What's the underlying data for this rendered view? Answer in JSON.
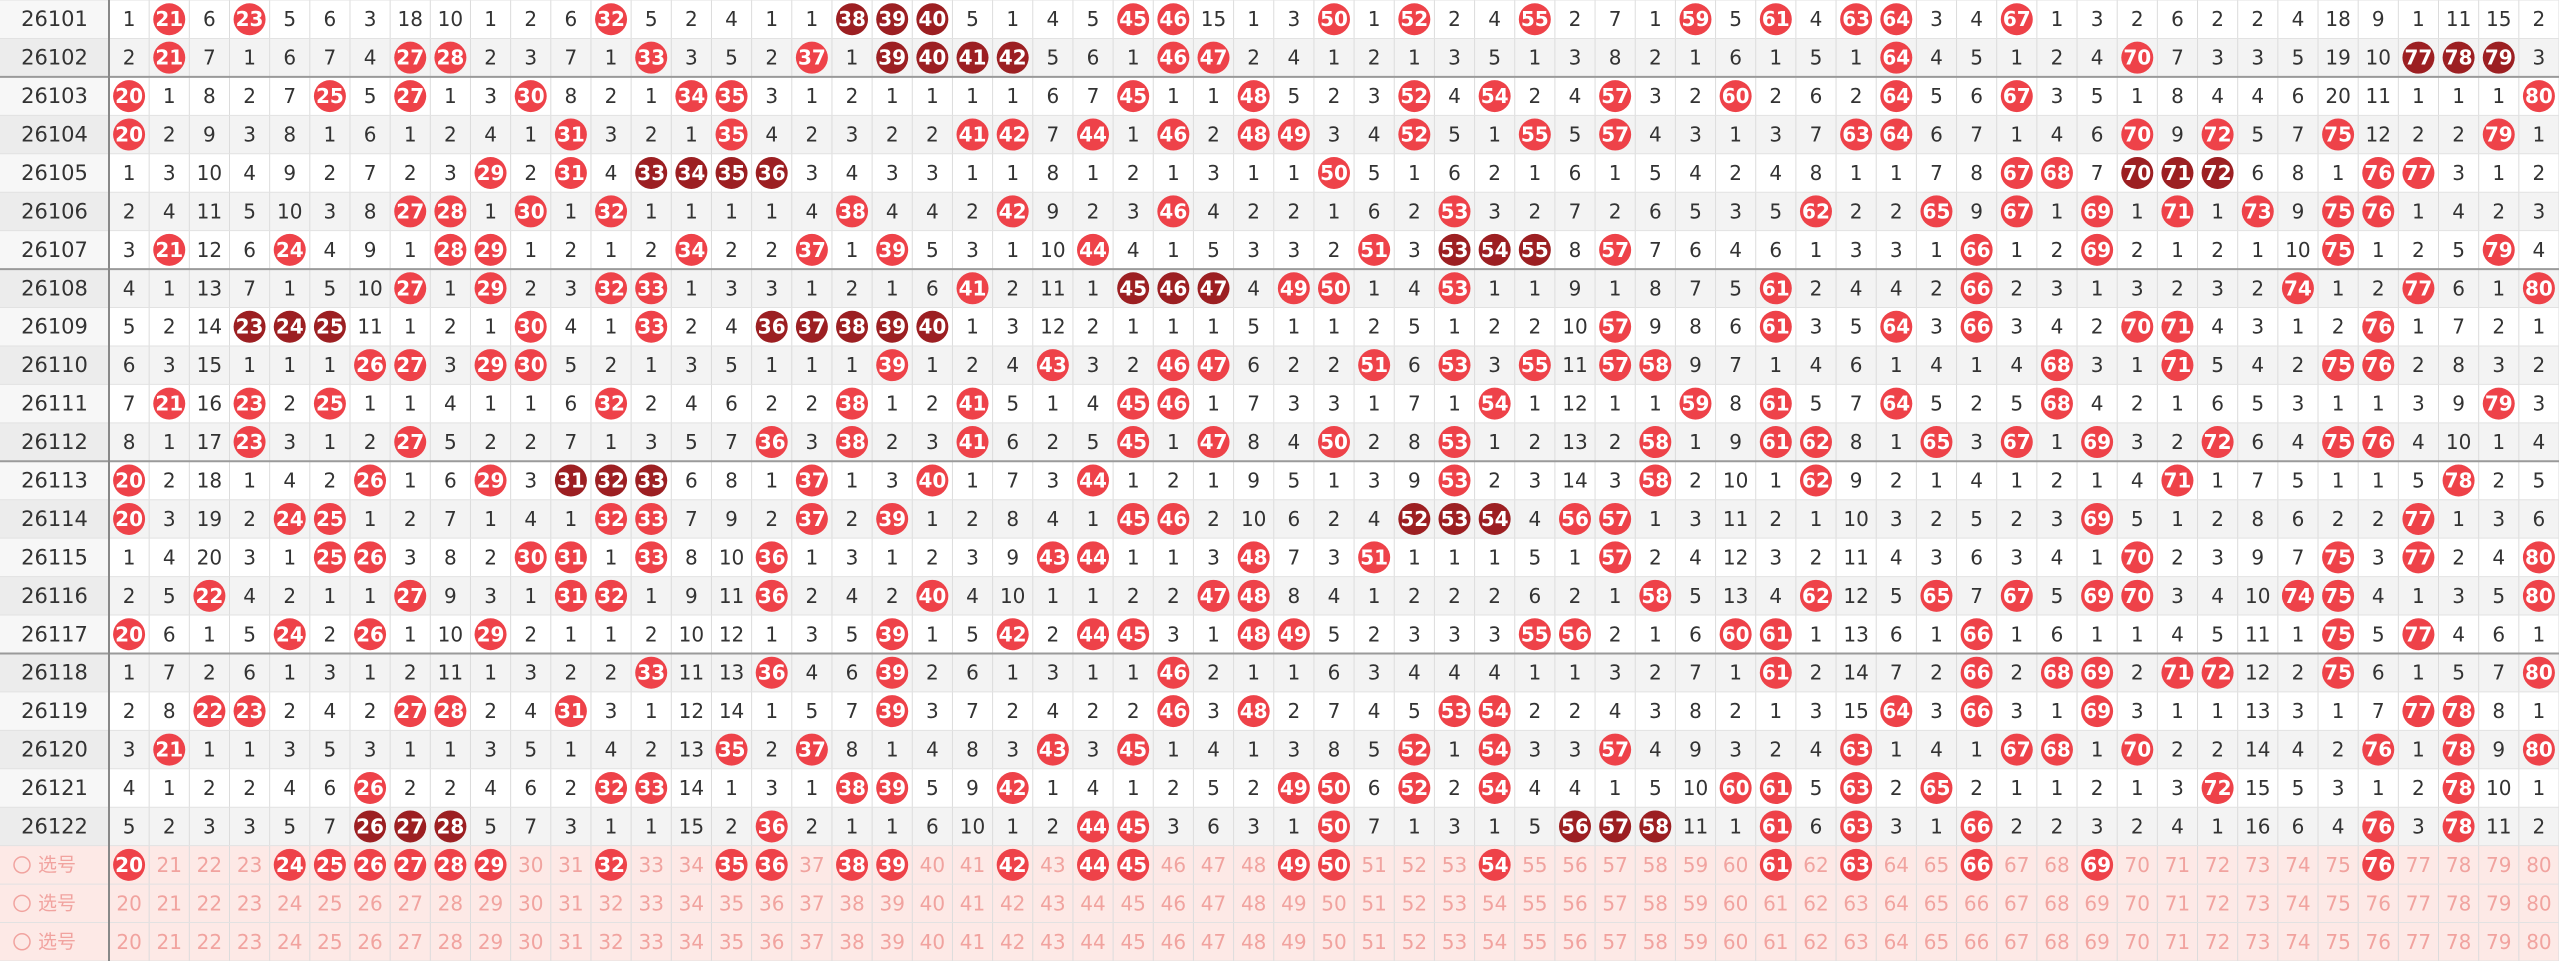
{
  "periods": [
    26101,
    26102,
    26103,
    26104,
    26105,
    26106,
    26107,
    26108,
    26109,
    26110,
    26111,
    26112,
    26113,
    26114,
    26115,
    26116,
    26117,
    26118,
    26119,
    26120,
    26121,
    26122
  ],
  "columns": [
    {
      "number": 20,
      "cells": [
        1,
        2,
        20,
        20,
        1,
        2,
        3,
        4,
        5,
        6,
        7,
        8,
        20,
        20,
        1,
        2,
        20,
        1,
        2,
        3,
        4,
        5
      ]
    },
    {
      "number": 21,
      "cells": [
        21,
        21,
        1,
        2,
        3,
        4,
        21,
        1,
        2,
        3,
        21,
        1,
        2,
        3,
        4,
        5,
        6,
        7,
        8,
        21,
        1,
        2
      ]
    },
    {
      "number": 22,
      "cells": [
        6,
        7,
        8,
        9,
        10,
        11,
        12,
        13,
        14,
        15,
        16,
        17,
        18,
        19,
        20,
        22,
        1,
        2,
        22,
        1,
        2,
        3
      ]
    },
    {
      "number": 23,
      "cells": [
        23,
        1,
        2,
        3,
        4,
        5,
        6,
        7,
        23,
        1,
        23,
        23,
        1,
        2,
        3,
        4,
        5,
        6,
        23,
        1,
        2,
        3
      ]
    },
    {
      "number": 24,
      "cells": [
        5,
        6,
        7,
        8,
        9,
        10,
        24,
        1,
        24,
        1,
        2,
        3,
        4,
        24,
        1,
        2,
        24,
        1,
        2,
        3,
        4,
        5
      ]
    },
    {
      "number": 25,
      "cells": [
        6,
        7,
        25,
        1,
        2,
        3,
        4,
        5,
        25,
        1,
        25,
        1,
        2,
        25,
        25,
        1,
        2,
        3,
        4,
        5,
        6,
        7
      ]
    },
    {
      "number": 26,
      "cells": [
        3,
        4,
        5,
        6,
        7,
        8,
        9,
        10,
        11,
        26,
        1,
        2,
        26,
        1,
        26,
        1,
        26,
        1,
        2,
        3,
        26,
        26
      ]
    },
    {
      "number": 27,
      "cells": [
        18,
        27,
        27,
        1,
        2,
        27,
        1,
        27,
        1,
        27,
        1,
        27,
        1,
        2,
        3,
        27,
        1,
        2,
        27,
        1,
        2,
        27
      ]
    },
    {
      "number": 28,
      "cells": [
        10,
        28,
        1,
        2,
        3,
        28,
        28,
        1,
        2,
        3,
        4,
        5,
        6,
        7,
        8,
        9,
        10,
        11,
        28,
        1,
        2,
        28
      ]
    },
    {
      "number": 29,
      "cells": [
        1,
        2,
        3,
        4,
        29,
        1,
        29,
        29,
        1,
        29,
        1,
        2,
        29,
        1,
        2,
        3,
        29,
        1,
        2,
        3,
        4,
        5
      ]
    },
    {
      "number": 30,
      "cells": [
        2,
        3,
        30,
        1,
        2,
        30,
        1,
        2,
        30,
        30,
        1,
        2,
        3,
        4,
        30,
        1,
        2,
        3,
        4,
        5,
        6,
        7
      ]
    },
    {
      "number": 31,
      "cells": [
        6,
        7,
        8,
        31,
        31,
        1,
        2,
        3,
        4,
        5,
        6,
        7,
        31,
        1,
        31,
        31,
        1,
        2,
        31,
        1,
        2,
        3
      ]
    },
    {
      "number": 32,
      "cells": [
        32,
        1,
        2,
        3,
        4,
        32,
        1,
        32,
        1,
        2,
        32,
        1,
        32,
        32,
        1,
        32,
        1,
        2,
        3,
        4,
        32,
        1
      ]
    },
    {
      "number": 33,
      "cells": [
        5,
        33,
        1,
        2,
        33,
        1,
        2,
        33,
        33,
        1,
        2,
        3,
        33,
        33,
        33,
        1,
        2,
        33,
        1,
        2,
        33,
        1
      ]
    },
    {
      "number": 34,
      "cells": [
        2,
        3,
        34,
        1,
        34,
        1,
        34,
        1,
        2,
        3,
        4,
        5,
        6,
        7,
        8,
        9,
        10,
        11,
        12,
        13,
        14,
        15
      ]
    },
    {
      "number": 35,
      "cells": [
        4,
        5,
        35,
        35,
        35,
        1,
        2,
        3,
        4,
        5,
        6,
        7,
        8,
        9,
        10,
        11,
        12,
        13,
        14,
        35,
        1,
        2
      ]
    },
    {
      "number": 36,
      "cells": [
        1,
        2,
        3,
        4,
        36,
        1,
        2,
        3,
        36,
        1,
        2,
        36,
        1,
        2,
        36,
        36,
        1,
        36,
        1,
        2,
        3,
        36
      ]
    },
    {
      "number": 37,
      "cells": [
        1,
        37,
        1,
        2,
        3,
        4,
        37,
        1,
        37,
        1,
        2,
        3,
        37,
        37,
        1,
        2,
        3,
        4,
        5,
        37,
        1,
        2
      ]
    },
    {
      "number": 38,
      "cells": [
        38,
        1,
        2,
        3,
        4,
        38,
        1,
        2,
        38,
        1,
        38,
        38,
        1,
        2,
        3,
        4,
        5,
        6,
        7,
        8,
        38,
        1
      ]
    },
    {
      "number": 39,
      "cells": [
        39,
        39,
        1,
        2,
        3,
        4,
        39,
        1,
        39,
        39,
        1,
        2,
        3,
        39,
        1,
        2,
        39,
        39,
        39,
        1,
        39,
        1
      ]
    },
    {
      "number": 40,
      "cells": [
        40,
        40,
        1,
        2,
        3,
        4,
        5,
        6,
        40,
        1,
        2,
        3,
        40,
        1,
        2,
        40,
        1,
        2,
        3,
        4,
        5,
        6
      ]
    },
    {
      "number": 41,
      "cells": [
        5,
        41,
        1,
        41,
        1,
        2,
        3,
        41,
        1,
        2,
        41,
        41,
        1,
        2,
        3,
        4,
        5,
        6,
        7,
        8,
        9,
        10
      ]
    },
    {
      "number": 42,
      "cells": [
        1,
        42,
        1,
        42,
        1,
        42,
        1,
        2,
        3,
        4,
        5,
        6,
        7,
        8,
        9,
        10,
        42,
        1,
        2,
        3,
        42,
        1
      ]
    },
    {
      "number": 43,
      "cells": [
        4,
        5,
        6,
        7,
        8,
        9,
        10,
        11,
        12,
        43,
        1,
        2,
        3,
        4,
        43,
        1,
        2,
        3,
        4,
        43,
        1,
        2
      ]
    },
    {
      "number": 44,
      "cells": [
        5,
        6,
        7,
        44,
        1,
        2,
        44,
        1,
        2,
        3,
        4,
        5,
        44,
        1,
        44,
        1,
        44,
        1,
        2,
        3,
        4,
        44
      ]
    },
    {
      "number": 45,
      "cells": [
        45,
        1,
        45,
        1,
        2,
        3,
        4,
        45,
        1,
        2,
        45,
        45,
        1,
        45,
        1,
        2,
        45,
        1,
        2,
        45,
        1,
        45
      ]
    },
    {
      "number": 46,
      "cells": [
        46,
        46,
        1,
        46,
        1,
        46,
        1,
        46,
        1,
        46,
        46,
        1,
        2,
        46,
        1,
        2,
        3,
        46,
        46,
        1,
        2,
        3
      ]
    },
    {
      "number": 47,
      "cells": [
        15,
        47,
        1,
        2,
        3,
        4,
        5,
        47,
        1,
        47,
        1,
        47,
        1,
        2,
        3,
        47,
        1,
        2,
        3,
        4,
        5,
        6
      ]
    },
    {
      "number": 48,
      "cells": [
        1,
        2,
        48,
        48,
        1,
        2,
        3,
        4,
        5,
        6,
        7,
        8,
        9,
        10,
        48,
        48,
        48,
        1,
        48,
        1,
        2,
        3
      ]
    },
    {
      "number": 49,
      "cells": [
        3,
        4,
        5,
        49,
        1,
        2,
        3,
        49,
        1,
        2,
        3,
        4,
        5,
        6,
        7,
        8,
        49,
        1,
        2,
        3,
        49,
        1
      ]
    },
    {
      "number": 50,
      "cells": [
        50,
        1,
        2,
        3,
        50,
        1,
        2,
        50,
        1,
        2,
        3,
        50,
        1,
        2,
        3,
        4,
        5,
        6,
        7,
        8,
        50,
        50
      ]
    },
    {
      "number": 51,
      "cells": [
        1,
        2,
        3,
        4,
        5,
        6,
        51,
        1,
        2,
        51,
        1,
        2,
        3,
        4,
        51,
        1,
        2,
        3,
        4,
        5,
        6,
        7
      ]
    },
    {
      "number": 52,
      "cells": [
        52,
        1,
        52,
        52,
        1,
        2,
        3,
        4,
        5,
        6,
        7,
        8,
        9,
        52,
        1,
        2,
        3,
        4,
        5,
        52,
        52,
        1
      ]
    },
    {
      "number": 53,
      "cells": [
        2,
        3,
        4,
        5,
        6,
        53,
        53,
        53,
        1,
        53,
        1,
        53,
        53,
        53,
        1,
        2,
        3,
        4,
        53,
        1,
        2,
        3
      ]
    },
    {
      "number": 54,
      "cells": [
        4,
        5,
        54,
        1,
        2,
        3,
        54,
        1,
        2,
        3,
        54,
        1,
        2,
        54,
        1,
        2,
        3,
        4,
        54,
        54,
        54,
        1
      ]
    },
    {
      "number": 55,
      "cells": [
        55,
        1,
        2,
        55,
        1,
        2,
        55,
        1,
        2,
        55,
        1,
        2,
        3,
        4,
        5,
        6,
        55,
        1,
        2,
        3,
        4,
        5
      ]
    },
    {
      "number": 56,
      "cells": [
        2,
        3,
        4,
        5,
        6,
        7,
        8,
        9,
        10,
        11,
        12,
        13,
        14,
        56,
        1,
        2,
        56,
        1,
        2,
        3,
        4,
        56
      ]
    },
    {
      "number": 57,
      "cells": [
        7,
        8,
        57,
        57,
        1,
        2,
        57,
        1,
        57,
        57,
        1,
        2,
        3,
        57,
        57,
        1,
        2,
        3,
        4,
        57,
        1,
        57
      ]
    },
    {
      "number": 58,
      "cells": [
        1,
        2,
        3,
        4,
        5,
        6,
        7,
        8,
        9,
        58,
        1,
        58,
        58,
        1,
        2,
        58,
        1,
        2,
        3,
        4,
        5,
        58
      ]
    },
    {
      "number": 59,
      "cells": [
        59,
        1,
        2,
        3,
        4,
        5,
        6,
        7,
        8,
        9,
        59,
        1,
        2,
        3,
        4,
        5,
        6,
        7,
        8,
        9,
        10,
        11
      ]
    },
    {
      "number": 60,
      "cells": [
        5,
        6,
        60,
        1,
        2,
        3,
        4,
        5,
        6,
        7,
        8,
        9,
        10,
        11,
        12,
        13,
        60,
        1,
        2,
        3,
        60,
        1
      ]
    },
    {
      "number": 61,
      "cells": [
        61,
        1,
        2,
        3,
        4,
        5,
        6,
        61,
        61,
        1,
        61,
        61,
        1,
        2,
        3,
        4,
        61,
        61,
        1,
        2,
        61,
        61
      ]
    },
    {
      "number": 62,
      "cells": [
        4,
        5,
        6,
        7,
        8,
        62,
        1,
        2,
        3,
        4,
        5,
        62,
        62,
        1,
        2,
        62,
        1,
        2,
        3,
        4,
        5,
        6
      ]
    },
    {
      "number": 63,
      "cells": [
        63,
        1,
        2,
        63,
        1,
        2,
        3,
        4,
        5,
        6,
        7,
        8,
        9,
        10,
        11,
        12,
        13,
        14,
        15,
        63,
        63,
        63
      ]
    },
    {
      "number": 64,
      "cells": [
        64,
        64,
        64,
        64,
        1,
        2,
        3,
        4,
        64,
        1,
        64,
        1,
        2,
        3,
        4,
        5,
        6,
        7,
        64,
        1,
        2,
        3
      ]
    },
    {
      "number": 65,
      "cells": [
        3,
        4,
        5,
        6,
        7,
        65,
        1,
        2,
        3,
        4,
        5,
        65,
        1,
        2,
        3,
        65,
        1,
        2,
        3,
        4,
        65,
        1
      ]
    },
    {
      "number": 66,
      "cells": [
        4,
        5,
        6,
        7,
        8,
        9,
        66,
        66,
        66,
        1,
        2,
        3,
        4,
        5,
        6,
        7,
        66,
        66,
        66,
        1,
        2,
        66
      ]
    },
    {
      "number": 67,
      "cells": [
        67,
        1,
        67,
        1,
        67,
        67,
        1,
        2,
        3,
        4,
        5,
        67,
        1,
        2,
        3,
        67,
        1,
        2,
        3,
        67,
        1,
        2
      ]
    },
    {
      "number": 68,
      "cells": [
        1,
        2,
        3,
        4,
        68,
        1,
        2,
        3,
        4,
        68,
        68,
        1,
        2,
        3,
        4,
        5,
        6,
        68,
        1,
        68,
        1,
        2
      ]
    },
    {
      "number": 69,
      "cells": [
        3,
        4,
        5,
        6,
        7,
        69,
        69,
        1,
        2,
        3,
        4,
        69,
        1,
        69,
        1,
        69,
        1,
        69,
        69,
        1,
        2,
        3
      ]
    },
    {
      "number": 70,
      "cells": [
        2,
        70,
        1,
        70,
        70,
        1,
        2,
        3,
        70,
        1,
        2,
        3,
        4,
        5,
        70,
        70,
        1,
        2,
        3,
        70,
        1,
        2
      ]
    },
    {
      "number": 71,
      "cells": [
        6,
        7,
        8,
        9,
        71,
        71,
        1,
        2,
        71,
        71,
        1,
        2,
        71,
        1,
        2,
        3,
        4,
        71,
        1,
        2,
        3,
        4
      ]
    },
    {
      "number": 72,
      "cells": [
        2,
        3,
        4,
        72,
        72,
        1,
        2,
        3,
        4,
        5,
        6,
        72,
        1,
        2,
        3,
        4,
        5,
        72,
        1,
        2,
        72,
        1
      ]
    },
    {
      "number": 73,
      "cells": [
        2,
        3,
        4,
        5,
        6,
        73,
        1,
        2,
        3,
        4,
        5,
        6,
        7,
        8,
        9,
        10,
        11,
        12,
        13,
        14,
        15,
        16
      ]
    },
    {
      "number": 74,
      "cells": [
        4,
        5,
        6,
        7,
        8,
        9,
        10,
        74,
        1,
        2,
        3,
        4,
        5,
        6,
        7,
        74,
        1,
        2,
        3,
        4,
        5,
        6
      ]
    },
    {
      "number": 75,
      "cells": [
        18,
        19,
        20,
        75,
        1,
        75,
        75,
        1,
        2,
        75,
        1,
        75,
        1,
        2,
        75,
        75,
        75,
        75,
        1,
        2,
        3,
        4
      ]
    },
    {
      "number": 76,
      "cells": [
        9,
        10,
        11,
        12,
        76,
        76,
        1,
        2,
        76,
        76,
        1,
        76,
        1,
        2,
        3,
        4,
        5,
        6,
        7,
        76,
        1,
        76
      ]
    },
    {
      "number": 77,
      "cells": [
        1,
        77,
        1,
        2,
        77,
        1,
        2,
        77,
        1,
        2,
        3,
        4,
        5,
        77,
        77,
        1,
        77,
        1,
        77,
        1,
        2,
        3
      ]
    },
    {
      "number": 78,
      "cells": [
        11,
        78,
        1,
        2,
        3,
        4,
        5,
        6,
        7,
        8,
        9,
        10,
        78,
        1,
        2,
        3,
        4,
        5,
        78,
        78,
        78,
        78
      ]
    },
    {
      "number": 79,
      "cells": [
        15,
        79,
        1,
        79,
        1,
        2,
        79,
        1,
        2,
        3,
        79,
        1,
        2,
        3,
        4,
        5,
        6,
        7,
        8,
        9,
        10,
        11
      ]
    },
    {
      "number": 80,
      "cells": [
        2,
        3,
        80,
        1,
        2,
        3,
        4,
        80,
        1,
        2,
        3,
        4,
        5,
        6,
        80,
        80,
        1,
        80,
        1,
        80,
        1,
        2
      ]
    }
  ],
  "select_rows": [
    {
      "label": "选号",
      "picked": [
        20,
        24,
        25,
        26,
        27,
        28,
        29,
        32,
        35,
        36,
        38,
        39,
        42,
        44,
        45,
        49,
        50,
        54,
        61,
        63,
        66,
        69,
        76
      ]
    },
    {
      "label": "选号"
    },
    {
      "label": "选号"
    }
  ]
}
